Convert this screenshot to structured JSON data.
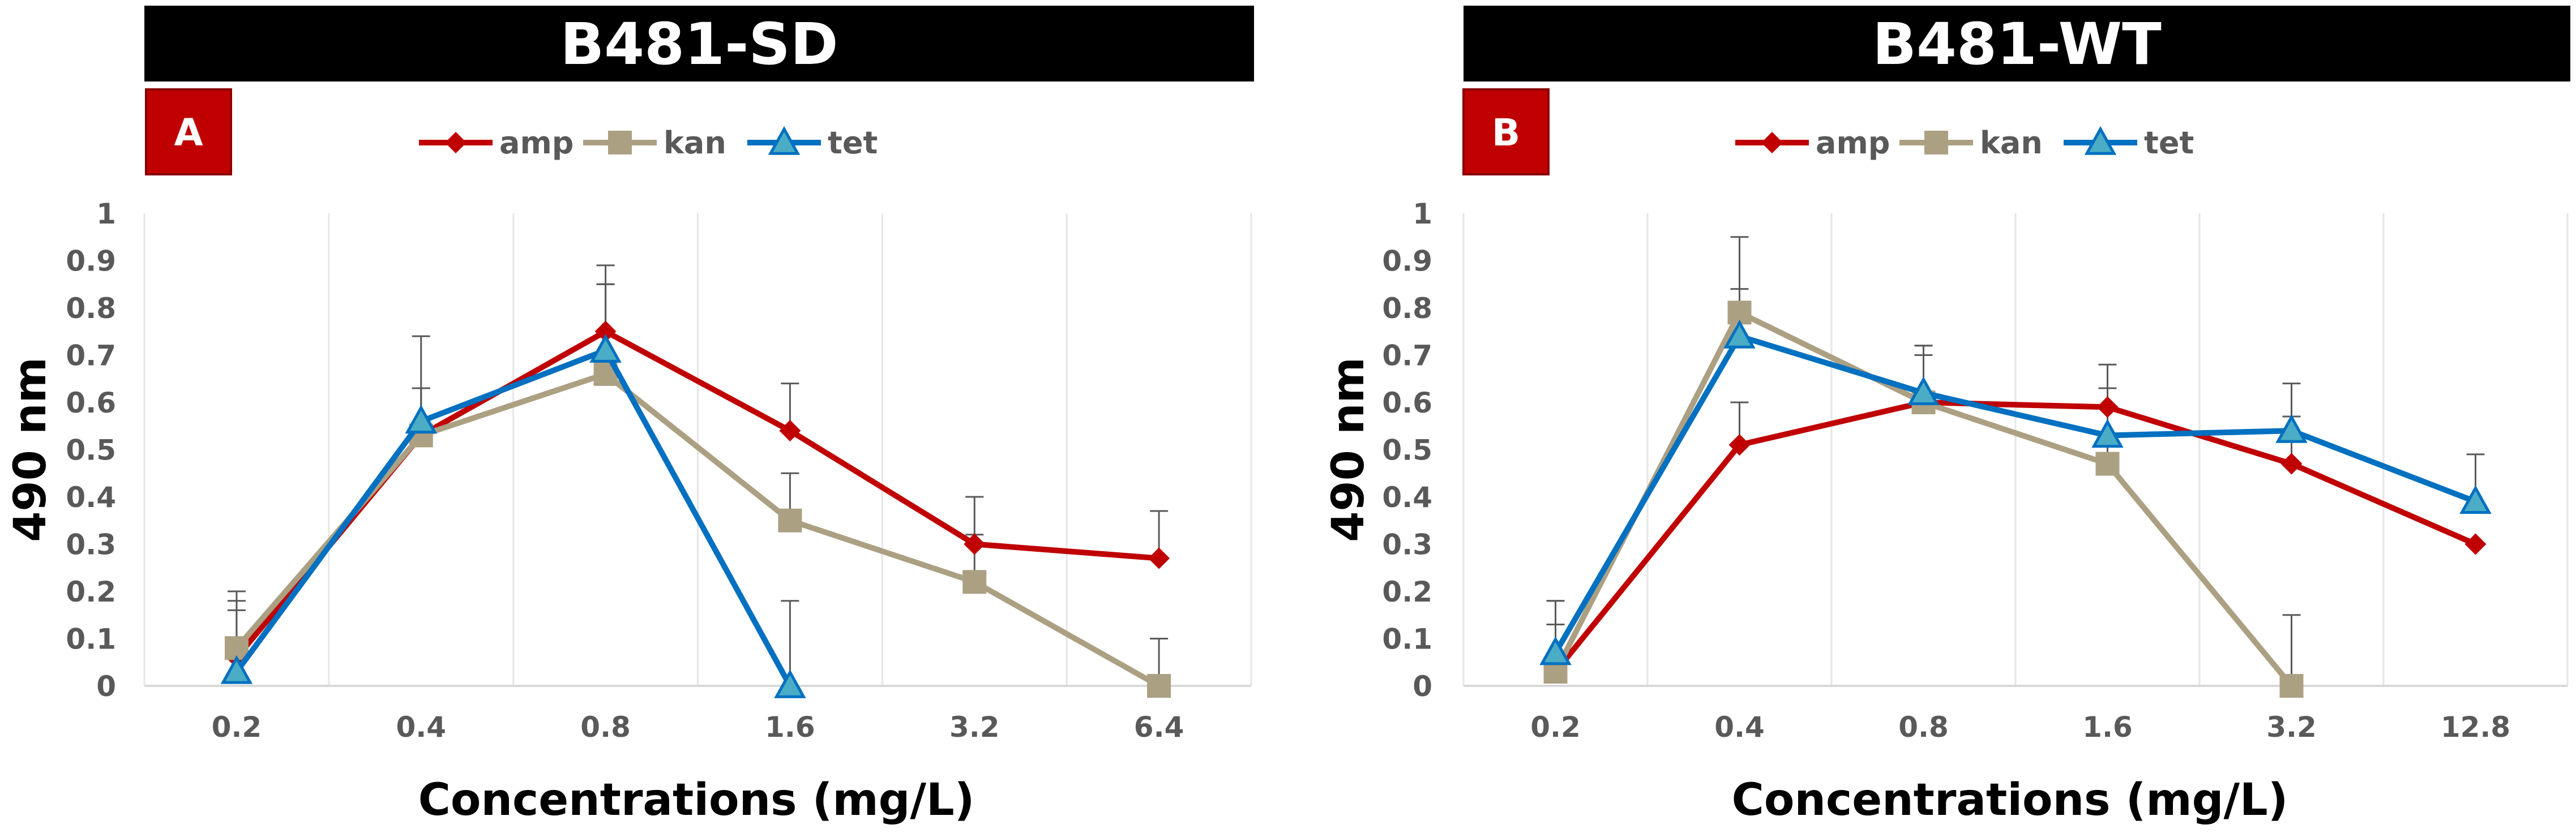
{
  "chart_data": [
    {
      "type": "line",
      "title": "B481-SD",
      "panel_label": "A",
      "xlabel": "Concentrations (mg/L)",
      "ylabel": "490 nm",
      "categories": [
        "0.2",
        "0.4",
        "0.8",
        "1.6",
        "3.2",
        "6.4"
      ],
      "yticks": [
        "0",
        "0.1",
        "0.2",
        "0.3",
        "0.4",
        "0.5",
        "0.6",
        "0.7",
        "0.8",
        "0.9",
        "1"
      ],
      "ylim": [
        0,
        1
      ],
      "grid": "vertical",
      "legend_position": "top",
      "series": [
        {
          "name": "amp",
          "color": "#C00000",
          "marker": "diamond",
          "values": [
            0.06,
            0.53,
            0.75,
            0.54,
            0.3,
            0.27
          ],
          "errors": [
            0.1,
            0.1,
            0.14,
            0.1,
            0.1,
            0.1
          ]
        },
        {
          "name": "kan",
          "color": "#ACA083",
          "marker": "square",
          "values": [
            0.08,
            0.53,
            0.66,
            0.35,
            0.22,
            0.0
          ],
          "errors": [
            0.1,
            0.1,
            0.19,
            0.1,
            0.1,
            0.1
          ]
        },
        {
          "name": "tet",
          "color": "#0070C0",
          "marker": "triangle",
          "values": [
            0.03,
            0.56,
            0.71,
            0.0,
            null,
            null
          ],
          "errors": [
            0.17,
            0.18,
            0.14,
            0.18,
            null,
            null
          ]
        }
      ]
    },
    {
      "type": "line",
      "title": "B481-WT",
      "panel_label": "B",
      "xlabel": "Concentrations (mg/L)",
      "ylabel": "490 nm",
      "categories": [
        "0.2",
        "0.4",
        "0.8",
        "1.6",
        "3.2",
        "12.8"
      ],
      "yticks": [
        "0",
        "0.1",
        "0.2",
        "0.3",
        "0.4",
        "0.5",
        "0.6",
        "0.7",
        "0.8",
        "0.9",
        "1"
      ],
      "ylim": [
        0,
        1
      ],
      "grid": "vertical",
      "legend_position": "top",
      "series": [
        {
          "name": "amp",
          "color": "#C00000",
          "marker": "diamond",
          "values": [
            0.03,
            0.51,
            0.6,
            0.59,
            0.47,
            0.3
          ],
          "errors": [
            0.1,
            0.09,
            0.1,
            0.09,
            0.1,
            null
          ]
        },
        {
          "name": "kan",
          "color": "#ACA083",
          "marker": "square",
          "values": [
            0.03,
            0.79,
            0.6,
            0.47,
            0.0,
            null
          ],
          "errors": [
            0.15,
            0.16,
            0.12,
            0.16,
            0.15,
            null
          ]
        },
        {
          "name": "tet",
          "color": "#0070C0",
          "marker": "triangle",
          "values": [
            0.07,
            0.74,
            0.62,
            0.53,
            0.54,
            0.39
          ],
          "errors": [
            0.11,
            0.1,
            0.1,
            0.1,
            0.1,
            0.1
          ]
        }
      ]
    }
  ]
}
